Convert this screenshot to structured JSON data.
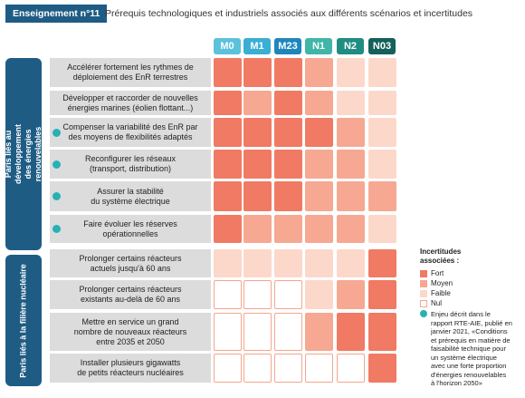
{
  "header": {
    "badge": "Enseignement n°11",
    "title": "Prérequis technologiques et industriels associés aux différents scénarios et incertitudes"
  },
  "colors": {
    "fort": "#f07a63",
    "moyen": "#f6a892",
    "faible": "#fcd8cb",
    "nul": "#ffffff",
    "nul_border": "#f4a68f",
    "teal_dot": "#27b1b4",
    "navy": "#1f5c84"
  },
  "columns": [
    {
      "label": "M0",
      "color": "#5bc2da"
    },
    {
      "label": "M1",
      "color": "#3aaed3"
    },
    {
      "label": "M23",
      "color": "#1f86bd"
    },
    {
      "label": "N1",
      "color": "#3fb6a8"
    },
    {
      "label": "N2",
      "color": "#208d82"
    },
    {
      "label": "N03",
      "color": "#14605a"
    }
  ],
  "groups": [
    {
      "label": "Paris liés au développement des énergies\nrenouvelables"
    },
    {
      "label": "Paris liés à la filière nucléaire"
    }
  ],
  "rows": [
    {
      "label": "Accélérer fortement les rythmes de\ndéploiement des EnR terrestres",
      "dot": false,
      "levels": [
        "fort",
        "fort",
        "fort",
        "moyen",
        "faible",
        "faible"
      ]
    },
    {
      "label": "Développer et raccorder de nouvelles\nénergies marines (éolien flottant...)",
      "dot": false,
      "levels": [
        "fort",
        "moyen",
        "fort",
        "moyen",
        "faible",
        "faible"
      ]
    },
    {
      "label": "Compenser la variabilité des EnR par\ndes moyens de flexibilités adaptés",
      "dot": true,
      "levels": [
        "fort",
        "fort",
        "fort",
        "fort",
        "moyen",
        "faible"
      ]
    },
    {
      "label": "Reconfigurer les réseaux\n(transport, distribution)",
      "dot": true,
      "levels": [
        "fort",
        "fort",
        "fort",
        "moyen",
        "moyen",
        "faible"
      ]
    },
    {
      "label": "Assurer la stabilité\ndu système électrique",
      "dot": true,
      "levels": [
        "fort",
        "fort",
        "fort",
        "moyen",
        "moyen",
        "moyen"
      ]
    },
    {
      "label": "Faire évoluer les réserves\nopérationnelles",
      "dot": true,
      "levels": [
        "fort",
        "moyen",
        "moyen",
        "moyen",
        "moyen",
        "faible"
      ]
    },
    {
      "label": "Prolonger certains réacteurs\nactuels jusqu'à 60 ans",
      "dot": false,
      "levels": [
        "faible",
        "faible",
        "faible",
        "faible",
        "faible",
        "fort"
      ]
    },
    {
      "label": "Prolonger certains réacteurs\nexistants au-delà de 60 ans",
      "dot": false,
      "levels": [
        "nul",
        "nul",
        "nul",
        "faible",
        "moyen",
        "fort"
      ]
    },
    {
      "label": "Mettre en service un grand\nnombre de nouveaux réacteurs\nentre 2035 et 2050",
      "dot": false,
      "levels": [
        "nul",
        "nul",
        "nul",
        "moyen",
        "fort",
        "fort"
      ]
    },
    {
      "label": "Installer plusieurs gigawatts\nde petits réacteurs nucléaires",
      "dot": false,
      "levels": [
        "nul",
        "nul",
        "nul",
        "nul",
        "nul",
        "fort"
      ]
    }
  ],
  "legend": {
    "title": "Incertitudes\nassociées :",
    "items": [
      {
        "level": "fort",
        "label": "Fort"
      },
      {
        "level": "moyen",
        "label": "Moyen"
      },
      {
        "level": "faible",
        "label": "Faible"
      },
      {
        "level": "nul",
        "label": "Nul"
      }
    ],
    "note": "Enjeu décrit dans le\nrapport RTE-AIE, publié en\njanvier 2021, «Conditions\net prérequis en matière de\nfaisabilité technique pour\nun système électrique\navec une forte proportion\nd'énergies renouvelables\nà l'horizon 2050»"
  }
}
